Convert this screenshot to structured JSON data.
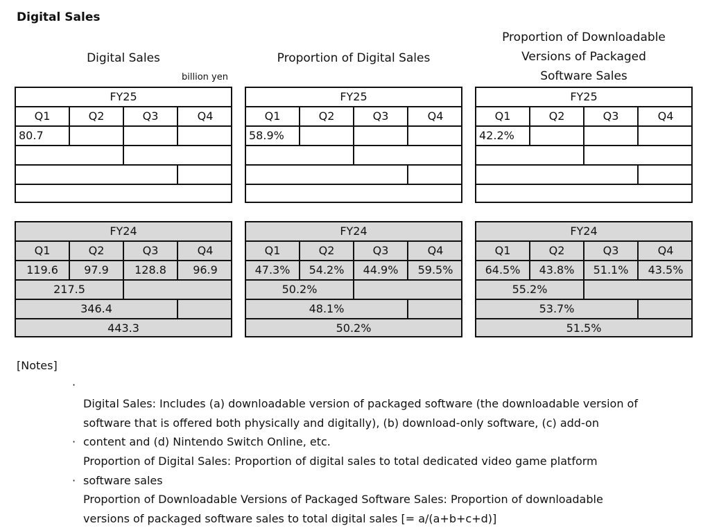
{
  "page_title": "Digital Sales",
  "headings": {
    "digital_sales": "Digital Sales",
    "proportion": "Proportion of Digital Sales",
    "downloadable": "Proportion of Downloadable\nVersions of Packaged\nSoftware Sales"
  },
  "unit_label": "billion yen",
  "tables": {
    "fy25_sales": {
      "fy": "FY25",
      "q": [
        "Q1",
        "Q2",
        "Q3",
        "Q4"
      ],
      "v": [
        "80.7",
        "",
        "",
        ""
      ],
      "h1": "",
      "nine": "",
      "full": ""
    },
    "fy25_prop": {
      "fy": "FY25",
      "q": [
        "Q1",
        "Q2",
        "Q3",
        "Q4"
      ],
      "v": [
        "58.9%",
        "",
        "",
        ""
      ],
      "h1": "",
      "nine": "",
      "full": ""
    },
    "fy25_dl": {
      "fy": "FY25",
      "q": [
        "Q1",
        "Q2",
        "Q3",
        "Q4"
      ],
      "v": [
        "42.2%",
        "",
        "",
        ""
      ],
      "h1": "",
      "nine": "",
      "full": ""
    },
    "fy24_sales": {
      "fy": "FY24",
      "q": [
        "Q1",
        "Q2",
        "Q3",
        "Q4"
      ],
      "v": [
        "119.6",
        "97.9",
        "128.8",
        "96.9"
      ],
      "h1": "217.5",
      "nine": "346.4",
      "full": "443.3"
    },
    "fy24_prop": {
      "fy": "FY24",
      "q": [
        "Q1",
        "Q2",
        "Q3",
        "Q4"
      ],
      "v": [
        "47.3%",
        "54.2%",
        "44.9%",
        "59.5%"
      ],
      "h1": "50.2%",
      "nine": "48.1%",
      "full": "50.2%"
    },
    "fy24_dl": {
      "fy": "FY24",
      "q": [
        "Q1",
        "Q2",
        "Q3",
        "Q4"
      ],
      "v": [
        "64.5%",
        "43.8%",
        "51.1%",
        "43.5%"
      ],
      "h1": "55.2%",
      "nine": "53.7%",
      "full": "51.5%"
    }
  },
  "notes": {
    "label": "[Notes]",
    "bullet": "·",
    "items": [
      "Digital Sales: Includes (a) downloadable version of packaged software (the downloadable version of\nsoftware that is offered both physically and digitally), (b) download-only software, (c) add-on\ncontent and (d) Nintendo Switch Online, etc.",
      "Proportion of Digital Sales: Proportion of digital sales to total dedicated video game platform\nsoftware sales",
      "Proportion of Downloadable Versions of Packaged Software Sales: Proportion of downloadable\nversions of packaged software sales to total digital sales [= a/(a+b+c+d)]"
    ]
  }
}
